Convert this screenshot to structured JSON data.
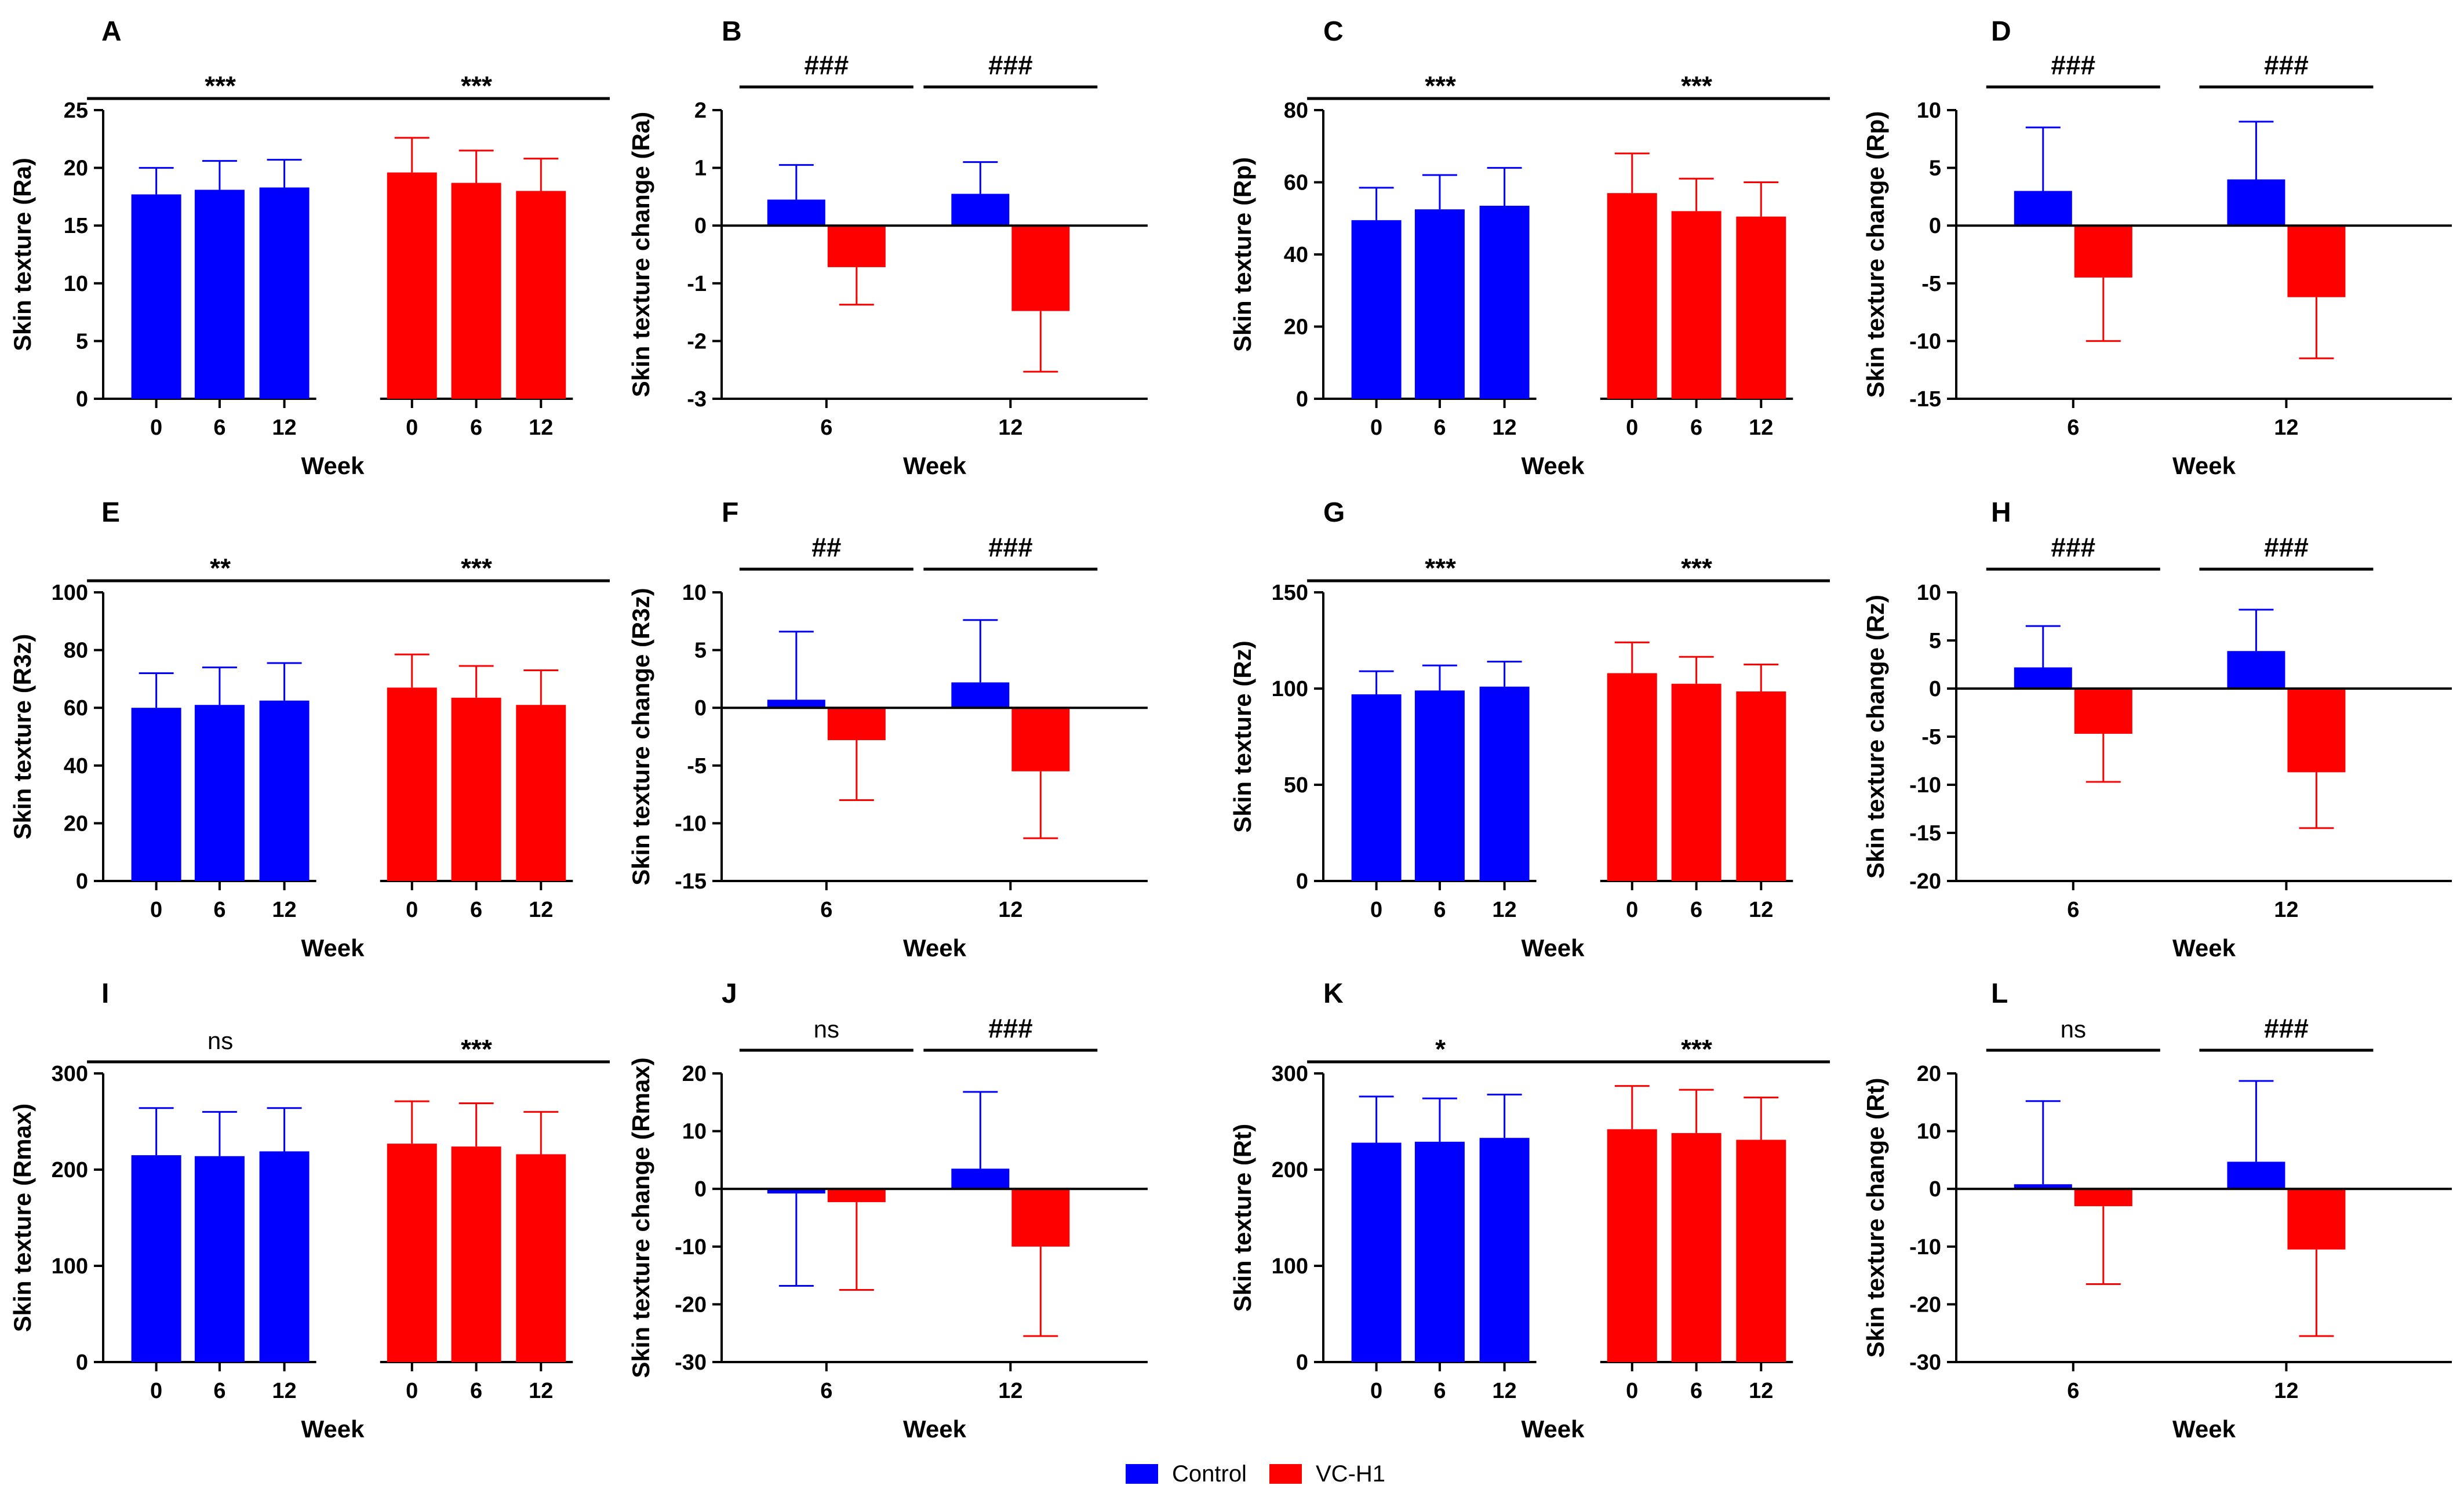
{
  "colors": {
    "control": "#0000ff",
    "vc_h1": "#ff0000",
    "axis": "#000000"
  },
  "legend": [
    {
      "label": "Control",
      "color": "#0000ff"
    },
    {
      "label": "VC-H1",
      "color": "#ff0000"
    }
  ],
  "chart_data": [
    {
      "panel": "A",
      "type": "bar",
      "ylabel": "Skin texture (Ra)",
      "xlabel": "Week",
      "ylim": [
        0,
        25
      ],
      "yticks": [
        0,
        5,
        10,
        15,
        20,
        25
      ],
      "categories": [
        "0",
        "6",
        "12"
      ],
      "series": [
        {
          "name": "Control",
          "values": [
            17.7,
            18.1,
            18.3
          ],
          "errors": [
            2.3,
            2.5,
            2.4
          ]
        },
        {
          "name": "VC-H1",
          "values": [
            19.6,
            18.7,
            18.0
          ],
          "errors": [
            3.0,
            2.8,
            2.8
          ]
        }
      ],
      "significance": [
        {
          "label": "***",
          "group": 0
        },
        {
          "label": "***",
          "group": 1
        }
      ]
    },
    {
      "panel": "B",
      "type": "bar",
      "ylabel": "Skin texture change (Ra)",
      "xlabel": "Week",
      "ylim": [
        -3,
        2
      ],
      "yticks": [
        -3,
        -2,
        -1,
        0,
        1,
        2
      ],
      "categories": [
        "6",
        "12"
      ],
      "series": [
        {
          "name": "Control",
          "values": [
            0.45,
            0.55
          ],
          "errors": [
            0.6,
            0.55
          ]
        },
        {
          "name": "VC-H1",
          "values": [
            -0.72,
            -1.48
          ],
          "errors": [
            0.65,
            1.05
          ]
        }
      ],
      "significance": [
        {
          "label": "###",
          "group": 0
        },
        {
          "label": "###",
          "group": 1
        }
      ]
    },
    {
      "panel": "C",
      "type": "bar",
      "ylabel": "Skin texture (Rp)",
      "xlabel": "Week",
      "ylim": [
        0,
        80
      ],
      "yticks": [
        0,
        20,
        40,
        60,
        80
      ],
      "categories": [
        "0",
        "6",
        "12"
      ],
      "series": [
        {
          "name": "Control",
          "values": [
            49.5,
            52.5,
            53.5
          ],
          "errors": [
            9.0,
            9.5,
            10.5
          ]
        },
        {
          "name": "VC-H1",
          "values": [
            57.0,
            52.0,
            50.5
          ],
          "errors": [
            11.0,
            9.0,
            9.5
          ]
        }
      ],
      "significance": [
        {
          "label": "***",
          "group": 0
        },
        {
          "label": "***",
          "group": 1
        }
      ]
    },
    {
      "panel": "D",
      "type": "bar",
      "ylabel": "Skin texture change (Rp)",
      "xlabel": "Week",
      "ylim": [
        -15,
        10
      ],
      "yticks": [
        -15,
        -10,
        -5,
        0,
        5,
        10
      ],
      "categories": [
        "6",
        "12"
      ],
      "series": [
        {
          "name": "Control",
          "values": [
            3.0,
            4.0
          ],
          "errors": [
            5.5,
            5.0
          ]
        },
        {
          "name": "VC-H1",
          "values": [
            -4.5,
            -6.2
          ],
          "errors": [
            5.5,
            5.3
          ]
        }
      ],
      "significance": [
        {
          "label": "###",
          "group": 0
        },
        {
          "label": "###",
          "group": 1
        }
      ]
    },
    {
      "panel": "E",
      "type": "bar",
      "ylabel": "Skin texture (R3z)",
      "xlabel": "Week",
      "ylim": [
        0,
        100
      ],
      "yticks": [
        0,
        20,
        40,
        60,
        80,
        100
      ],
      "categories": [
        "0",
        "6",
        "12"
      ],
      "series": [
        {
          "name": "Control",
          "values": [
            60.0,
            61.0,
            62.5
          ],
          "errors": [
            12.0,
            13.0,
            13.0
          ]
        },
        {
          "name": "VC-H1",
          "values": [
            67.0,
            63.5,
            61.0
          ],
          "errors": [
            11.5,
            11.0,
            12.0
          ]
        }
      ],
      "significance": [
        {
          "label": "**",
          "group": 0
        },
        {
          "label": "***",
          "group": 1
        }
      ]
    },
    {
      "panel": "F",
      "type": "bar",
      "ylabel": "Skin texture change (R3z)",
      "xlabel": "Week",
      "ylim": [
        -15,
        10
      ],
      "yticks": [
        -15,
        -10,
        -5,
        0,
        5,
        10
      ],
      "categories": [
        "6",
        "12"
      ],
      "series": [
        {
          "name": "Control",
          "values": [
            0.7,
            2.2
          ],
          "errors": [
            5.9,
            5.4
          ]
        },
        {
          "name": "VC-H1",
          "values": [
            -2.8,
            -5.5
          ],
          "errors": [
            5.2,
            5.8
          ]
        }
      ],
      "significance": [
        {
          "label": "##",
          "group": 0
        },
        {
          "label": "###",
          "group": 1
        }
      ]
    },
    {
      "panel": "G",
      "type": "bar",
      "ylabel": "Skin texture (Rz)",
      "xlabel": "Week",
      "ylim": [
        0,
        150
      ],
      "yticks": [
        0,
        50,
        100,
        150
      ],
      "categories": [
        "0",
        "6",
        "12"
      ],
      "series": [
        {
          "name": "Control",
          "values": [
            97.0,
            99.0,
            101.0
          ],
          "errors": [
            12.0,
            13.0,
            13.0
          ]
        },
        {
          "name": "VC-H1",
          "values": [
            108.0,
            102.5,
            98.5
          ],
          "errors": [
            16.0,
            14.0,
            14.0
          ]
        }
      ],
      "significance": [
        {
          "label": "***",
          "group": 0
        },
        {
          "label": "***",
          "group": 1
        }
      ]
    },
    {
      "panel": "H",
      "type": "bar",
      "ylabel": "Skin texture change (Rz)",
      "xlabel": "Week",
      "ylim": [
        -20,
        10
      ],
      "yticks": [
        -20,
        -15,
        -10,
        -5,
        0,
        5,
        10
      ],
      "categories": [
        "6",
        "12"
      ],
      "series": [
        {
          "name": "Control",
          "values": [
            2.2,
            3.9
          ],
          "errors": [
            4.3,
            4.3
          ]
        },
        {
          "name": "VC-H1",
          "values": [
            -4.7,
            -8.7
          ],
          "errors": [
            5.0,
            5.8
          ]
        }
      ],
      "significance": [
        {
          "label": "###",
          "group": 0
        },
        {
          "label": "###",
          "group": 1
        }
      ]
    },
    {
      "panel": "I",
      "type": "bar",
      "ylabel": "Skin texture (Rmax)",
      "xlabel": "Week",
      "ylim": [
        0,
        300
      ],
      "yticks": [
        0,
        100,
        200,
        300
      ],
      "categories": [
        "0",
        "6",
        "12"
      ],
      "series": [
        {
          "name": "Control",
          "values": [
            215.0,
            214.0,
            219.0
          ],
          "errors": [
            49.0,
            46.0,
            45.0
          ]
        },
        {
          "name": "VC-H1",
          "values": [
            227.0,
            224.0,
            216.0
          ],
          "errors": [
            44.0,
            45.0,
            44.0
          ]
        }
      ],
      "significance": [
        {
          "label": "ns",
          "group": 0
        },
        {
          "label": "***",
          "group": 1
        }
      ]
    },
    {
      "panel": "J",
      "type": "bar",
      "ylabel": "Skin texture change (Rmax)",
      "xlabel": "Week",
      "ylim": [
        -30,
        20
      ],
      "yticks": [
        -30,
        -20,
        -10,
        0,
        10,
        20
      ],
      "categories": [
        "6",
        "12"
      ],
      "series": [
        {
          "name": "Control",
          "values": [
            -0.8,
            3.5
          ],
          "errors": [
            16.0,
            13.3
          ]
        },
        {
          "name": "VC-H1",
          "values": [
            -2.3,
            -10.0
          ],
          "errors": [
            15.2,
            15.5
          ]
        }
      ],
      "significance": [
        {
          "label": "ns",
          "group": 0
        },
        {
          "label": "###",
          "group": 1
        }
      ]
    },
    {
      "panel": "K",
      "type": "bar",
      "ylabel": "Skin texture (Rt)",
      "xlabel": "Week",
      "ylim": [
        0,
        300
      ],
      "yticks": [
        0,
        100,
        200,
        300
      ],
      "categories": [
        "0",
        "6",
        "12"
      ],
      "series": [
        {
          "name": "Control",
          "values": [
            228.0,
            229.0,
            233.0
          ],
          "errors": [
            48.0,
            45.0,
            45.0
          ]
        },
        {
          "name": "VC-H1",
          "values": [
            242.0,
            238.0,
            231.0
          ],
          "errors": [
            45.0,
            45.0,
            44.0
          ]
        }
      ],
      "significance": [
        {
          "label": "*",
          "group": 0
        },
        {
          "label": "***",
          "group": 1
        }
      ]
    },
    {
      "panel": "L",
      "type": "bar",
      "ylabel": "Skin texture change (Rt)",
      "xlabel": "Week",
      "ylim": [
        -30,
        20
      ],
      "yticks": [
        -30,
        -20,
        -10,
        0,
        10,
        20
      ],
      "categories": [
        "6",
        "12"
      ],
      "series": [
        {
          "name": "Control",
          "values": [
            0.8,
            4.7
          ],
          "errors": [
            14.4,
            14.0
          ]
        },
        {
          "name": "VC-H1",
          "values": [
            -3.0,
            -10.5
          ],
          "errors": [
            13.5,
            15.0
          ]
        }
      ],
      "significance": [
        {
          "label": "ns",
          "group": 0
        },
        {
          "label": "###",
          "group": 1
        }
      ]
    }
  ]
}
